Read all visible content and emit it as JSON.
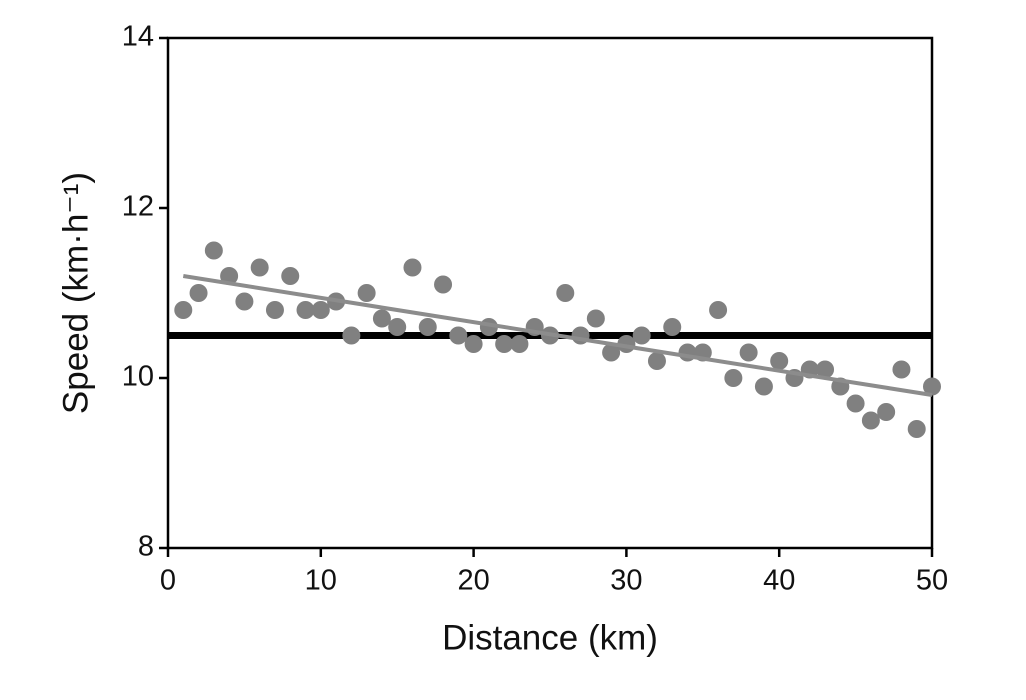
{
  "chart_data": {
    "type": "scatter",
    "x_label": "Distance (km)",
    "y_label": "Speed (km·h⁻¹)",
    "x": [
      1,
      2,
      3,
      4,
      5,
      6,
      7,
      8,
      9,
      10,
      11,
      12,
      13,
      14,
      15,
      16,
      17,
      18,
      19,
      20,
      21,
      22,
      23,
      24,
      25,
      26,
      27,
      28,
      29,
      30,
      31,
      32,
      33,
      34,
      35,
      36,
      37,
      38,
      39,
      40,
      41,
      42,
      43,
      44,
      45,
      46,
      47,
      48,
      49,
      50
    ],
    "values": [
      10.8,
      11.0,
      11.5,
      11.2,
      10.9,
      11.3,
      10.8,
      11.2,
      10.8,
      10.8,
      10.9,
      10.5,
      11.0,
      10.7,
      10.6,
      11.3,
      10.6,
      11.1,
      10.5,
      10.4,
      10.6,
      10.4,
      10.4,
      10.6,
      10.5,
      11.0,
      10.5,
      10.7,
      10.3,
      10.4,
      10.5,
      10.2,
      10.6,
      10.3,
      10.3,
      10.8,
      10.0,
      10.3,
      9.9,
      10.2,
      10.0,
      10.1,
      10.1,
      9.9,
      9.7,
      9.5,
      9.6,
      10.1,
      9.4,
      9.9
    ],
    "color": "#808080",
    "trendline": {
      "x": [
        1,
        50
      ],
      "values": [
        11.2,
        9.8
      ],
      "color": "#8c8c8c"
    },
    "reference_line": {
      "value": 10.5,
      "color": "#000000"
    },
    "xlim": [
      0,
      50
    ],
    "xticks": [
      0,
      10,
      20,
      30,
      40,
      50
    ],
    "ylim": [
      8,
      14
    ],
    "yticks": [
      8,
      10,
      12,
      14
    ],
    "grid": false
  }
}
